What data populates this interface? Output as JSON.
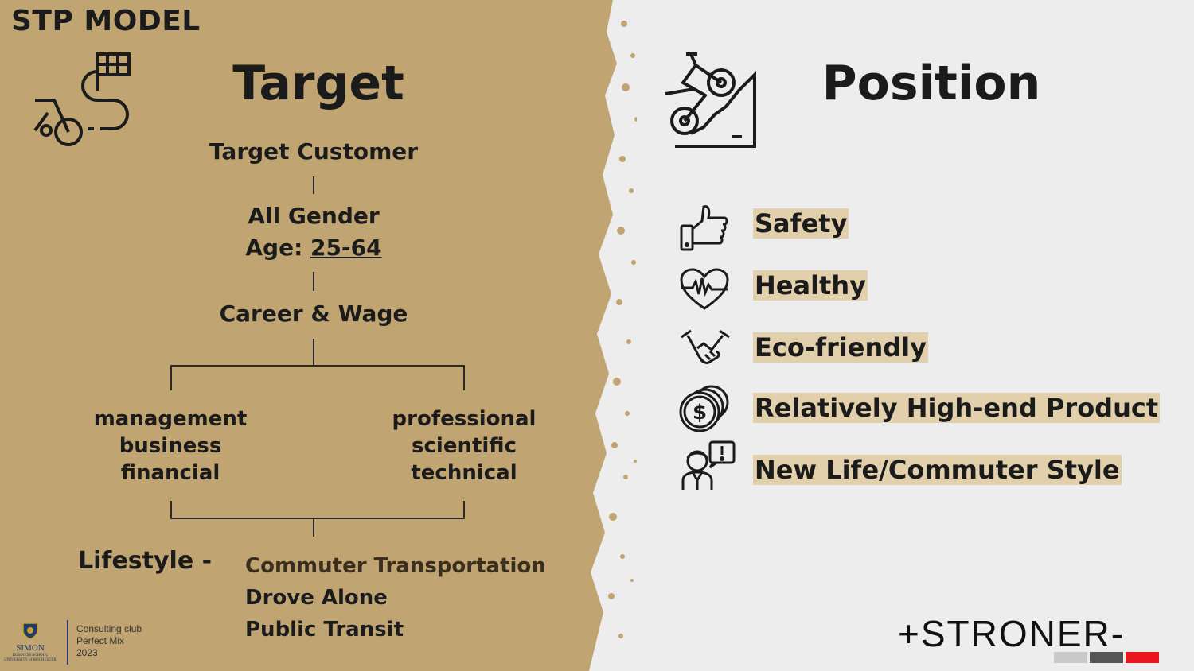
{
  "slide_title": "STP MODEL",
  "target": {
    "heading": "Target",
    "customer_label": "Target Customer",
    "gender": "All Gender",
    "age_label": "Age: ",
    "age_value": "25-64",
    "career_label": "Career & Wage",
    "career_left": [
      "management",
      "business",
      "financial"
    ],
    "career_right": [
      "professional",
      "scientific",
      "technical"
    ],
    "lifestyle_label": "Lifestyle -",
    "lifestyle_items": [
      "Commuter Transportation",
      "Drove Alone",
      "Public Transit"
    ]
  },
  "position": {
    "heading": "Position",
    "items": [
      {
        "label": "Safety",
        "icon": "thumbs-up-icon"
      },
      {
        "label": "Healthy",
        "icon": "heart-rate-icon"
      },
      {
        "label": "Eco-friendly",
        "icon": "handshake-icon"
      },
      {
        "label": "Relatively High-end Product",
        "icon": "coins-dollar-icon"
      },
      {
        "label": "New Life/Commuter Style",
        "icon": "person-chat-icon"
      }
    ]
  },
  "footer": {
    "school_name": "SIMON",
    "school_sub": "BUSINESS SCHOOL",
    "school_univ": "UNIVERSITY of ROCHESTER",
    "club_lines": [
      "Consulting club",
      "Perfect Mix",
      "2023"
    ]
  },
  "brand": {
    "name": "+STRONER-",
    "colors": [
      "#c9c9c9",
      "#555555",
      "#e8161c"
    ]
  },
  "colors": {
    "left_bg": "#c0a573",
    "right_bg": "#ededed",
    "highlight": "#e2d0ad",
    "text": "#1b1b1b"
  }
}
